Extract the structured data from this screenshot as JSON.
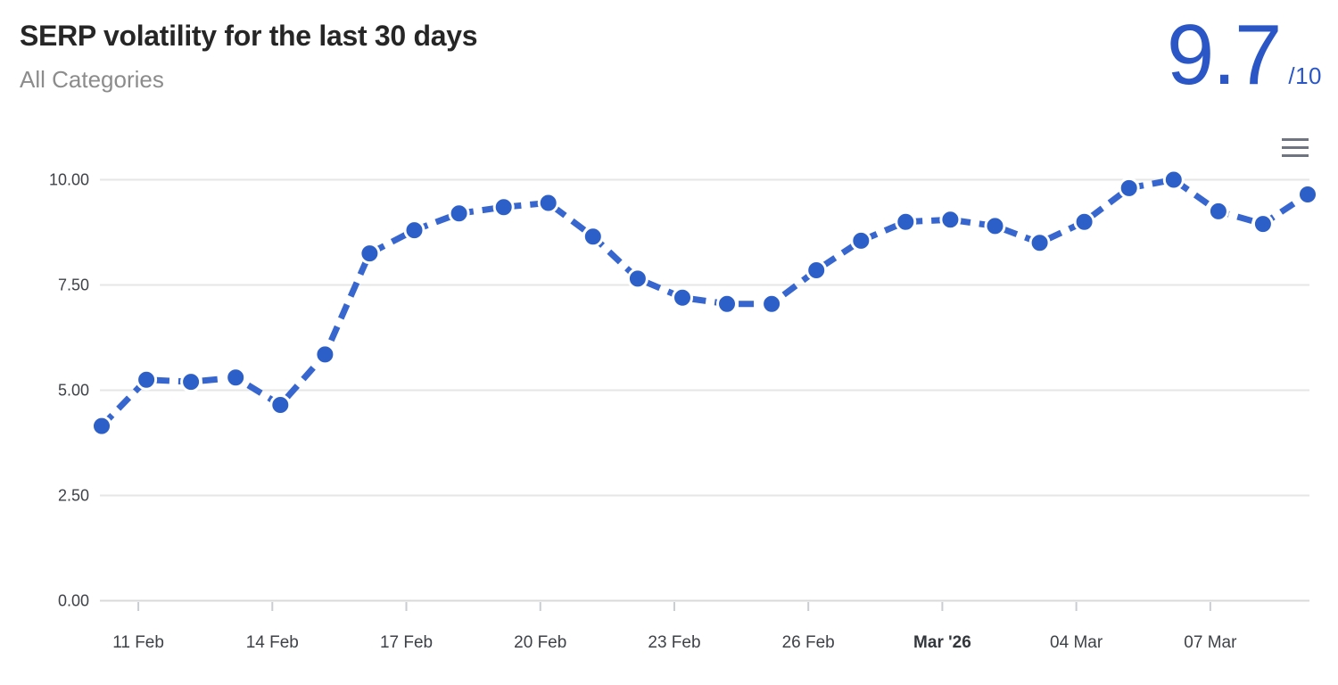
{
  "header": {
    "title": "SERP volatility for the last 30 days",
    "subtitle": "All Categories",
    "score": "9.7",
    "score_suffix": "/10"
  },
  "menu": {
    "icon": "hamburger-menu-icon"
  },
  "colors": {
    "score_blue": "#2b57c6",
    "line_blue": "#3766ce",
    "marker_blue": "#2d5fc8",
    "title_text": "#262626",
    "subtitle_text": "#8c8c8c",
    "axis_text": "#3e4247",
    "gridline": "#e6e6e6",
    "axis_line": "#d9d9d9",
    "tick_line": "#c9ccd1",
    "menu_icon_gray": "#6e7580",
    "marker_halo": "#ffffff"
  },
  "chart_data": {
    "type": "line",
    "title": "SERP volatility for the last 30 days",
    "subtitle": "All Categories",
    "xlabel": "",
    "ylabel": "",
    "ylim": [
      0,
      10
    ],
    "grid": "horizontal-only",
    "legend": "none",
    "line_style": "dashed",
    "marker": "circle",
    "categories": [
      "10 Feb",
      "11 Feb",
      "12 Feb",
      "13 Feb",
      "14 Feb",
      "15 Feb",
      "16 Feb",
      "17 Feb",
      "18 Feb",
      "19 Feb",
      "20 Feb",
      "21 Feb",
      "22 Feb",
      "23 Feb",
      "24 Feb",
      "25 Feb",
      "26 Feb",
      "27 Feb",
      "28 Feb",
      "01 Mar",
      "02 Mar",
      "03 Mar",
      "04 Mar",
      "05 Mar",
      "06 Mar",
      "07 Mar",
      "08 Mar",
      "09 Mar"
    ],
    "values": [
      4.15,
      5.25,
      5.2,
      5.3,
      4.65,
      5.85,
      8.25,
      8.8,
      9.2,
      9.35,
      9.45,
      8.65,
      7.65,
      7.2,
      7.05,
      7.05,
      7.85,
      8.55,
      9.0,
      9.05,
      8.9,
      8.5,
      9.0,
      9.8,
      10.0,
      9.25,
      8.95,
      9.65
    ],
    "ytick_values": [
      0,
      2.5,
      5,
      7.5,
      10
    ],
    "ytick_labels": [
      "0.00",
      "2.50",
      "5.00",
      "7.50",
      "10.00"
    ],
    "xticks": [
      {
        "label": "11 Feb",
        "index": 1,
        "bold": false
      },
      {
        "label": "14 Feb",
        "index": 4,
        "bold": false
      },
      {
        "label": "17 Feb",
        "index": 7,
        "bold": false
      },
      {
        "label": "20 Feb",
        "index": 10,
        "bold": false
      },
      {
        "label": "23 Feb",
        "index": 13,
        "bold": false
      },
      {
        "label": "26 Feb",
        "index": 16,
        "bold": false
      },
      {
        "label": "Mar '26",
        "index": 19,
        "bold": true
      },
      {
        "label": "04 Mar",
        "index": 22,
        "bold": false
      },
      {
        "label": "07 Mar",
        "index": 25,
        "bold": false
      }
    ]
  }
}
